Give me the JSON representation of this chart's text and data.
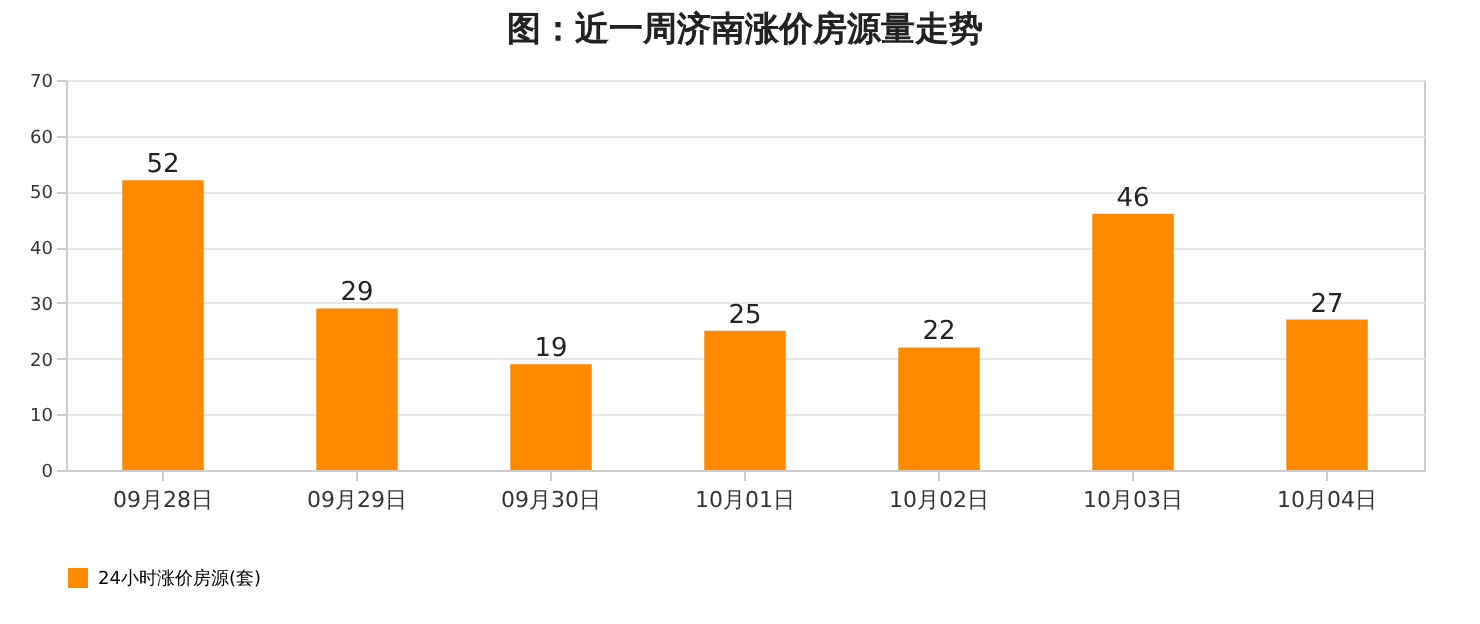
{
  "chart_data": {
    "type": "bar",
    "title": "图：近一周济南涨价房源量走势",
    "categories": [
      "09月28日",
      "09月29日",
      "09月30日",
      "10月01日",
      "10月02日",
      "10月03日",
      "10月04日"
    ],
    "series": [
      {
        "name": "24小时涨价房源(套)",
        "color": "#ff8a00",
        "values": [
          52,
          29,
          19,
          25,
          22,
          46,
          27
        ]
      }
    ],
    "ylim": [
      0,
      70
    ],
    "yticks": [
      0,
      10,
      20,
      30,
      40,
      50,
      60,
      70
    ],
    "grid": "y",
    "data_labels": true,
    "legend": "bottom"
  }
}
